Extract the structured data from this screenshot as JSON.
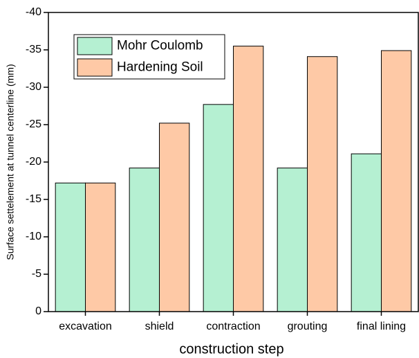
{
  "chart_data": {
    "type": "bar",
    "x_label": "construction step",
    "y_label": "Surface settelement at tunnel centerline (mm)",
    "categories": [
      "excavation",
      "shield",
      "contraction",
      "grouting",
      "final lining"
    ],
    "series": [
      {
        "name": "Mohr Coulomb",
        "color": "#b5f0d2",
        "values": [
          -17.2,
          -19.2,
          -27.7,
          -19.2,
          -21.1
        ]
      },
      {
        "name": "Hardening Soil",
        "color": "#fec9a6",
        "values": [
          -17.2,
          -25.2,
          -35.5,
          -34.1,
          -34.9
        ]
      }
    ],
    "ylim": [
      0,
      -40
    ],
    "yticks": [
      0,
      -5,
      -10,
      -15,
      -20,
      -25,
      -30,
      -35,
      -40
    ],
    "legend": "upper left"
  }
}
